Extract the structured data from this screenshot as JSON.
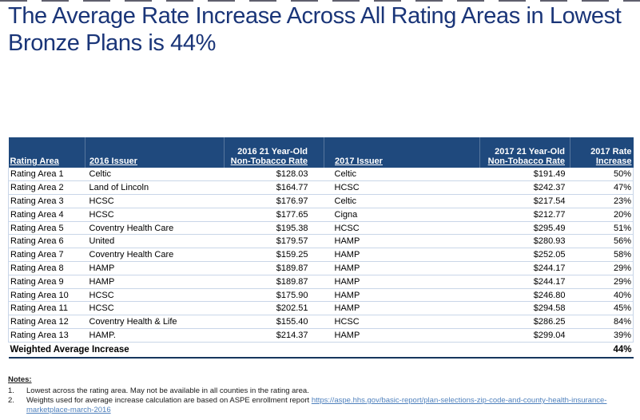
{
  "title": {
    "full": "The Average Rate Increase Across All Rating Areas in Lowest Bronze Plans is 44%",
    "lines": [
      "The Average Rate Increase Across All Rating Areas in Lowest",
      "Bronze Plans is 44%"
    ]
  },
  "colors": {
    "title_blue": "#1a3578",
    "header_navy": "#1F497D",
    "grid_light_blue": "#c9d6e8",
    "dark_rule_navy": "#17375E",
    "link_blue": "#4f81bd"
  },
  "table": {
    "columns": [
      {
        "id": "rating-area",
        "align": "left",
        "lines": [
          "Rating Area"
        ]
      },
      {
        "id": "issuer-2016",
        "align": "left",
        "lines": [
          "2016 Issuer"
        ]
      },
      {
        "id": "rate-2016",
        "align": "right",
        "lines": [
          "2016 21 Year-Old",
          "Non-Tobacco Rate"
        ]
      },
      {
        "id": "issuer-2017",
        "align": "left",
        "lines": [
          "2017 Issuer"
        ]
      },
      {
        "id": "rate-2017",
        "align": "right",
        "lines": [
          "2017 21 Year-Old",
          "Non-Tobacco Rate"
        ]
      },
      {
        "id": "increase-2017",
        "align": "right",
        "lines": [
          "2017 Rate",
          "Increase"
        ]
      }
    ],
    "rows": [
      [
        "Rating Area 1",
        "Celtic",
        "$128.03",
        "Celtic",
        "$191.49",
        "50%"
      ],
      [
        "Rating Area 2",
        "Land of Lincoln",
        "$164.77",
        "HCSC",
        "$242.37",
        "47%"
      ],
      [
        "Rating Area 3",
        "HCSC",
        "$176.97",
        "Celtic",
        "$217.54",
        "23%"
      ],
      [
        "Rating Area 4",
        "HCSC",
        "$177.65",
        "Cigna",
        "$212.77",
        "20%"
      ],
      [
        "Rating Area 5",
        "Coventry Health Care",
        "$195.38",
        "HCSC",
        "$295.49",
        "51%"
      ],
      [
        "Rating Area 6",
        "United",
        "$179.57",
        "HAMP",
        "$280.93",
        "56%"
      ],
      [
        "Rating Area 7",
        "Coventry Health Care",
        "$159.25",
        "HAMP",
        "$252.05",
        "58%"
      ],
      [
        "Rating Area 8",
        "HAMP",
        "$189.87",
        "HAMP",
        "$244.17",
        "29%"
      ],
      [
        "Rating Area 9",
        "HAMP",
        "$189.87",
        "HAMP",
        "$244.17",
        "29%"
      ],
      [
        "Rating Area 10",
        "HCSC",
        "$175.90",
        "HAMP",
        "$246.80",
        "40%"
      ],
      [
        "Rating Area 11",
        "HCSC",
        "$202.51",
        "HAMP",
        "$294.58",
        "45%"
      ],
      [
        "Rating Area 12",
        "Coventry Health & Life",
        "$155.40",
        "HCSC",
        "$286.25",
        "84%"
      ],
      [
        "Rating Area 13",
        "HAMP.",
        "$214.37",
        "HAMP",
        "$299.04",
        "39%"
      ]
    ],
    "footer": {
      "label": "Weighted Average Increase",
      "value": "44%"
    }
  },
  "notes": {
    "heading": "Notes:",
    "items": [
      {
        "number": "1.",
        "text": "Lowest across the rating area. May not be available in all counties in the rating area."
      },
      {
        "number": "2.",
        "text_before_link": "Weights used for average increase calculation are based on ASPE enrollment report ",
        "link": "https://aspe.hhs.gov/basic-report/plan-selections-zip-code-and-county-health-insurance-marketplace-march-2016"
      }
    ]
  }
}
